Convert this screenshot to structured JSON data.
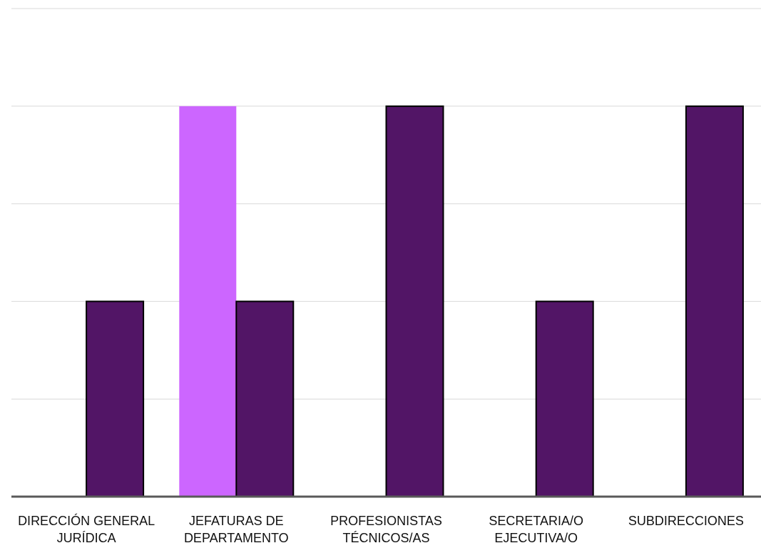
{
  "chart_data": {
    "type": "bar",
    "categories": [
      [
        "DIRECCIÓN GENERAL",
        "JURÍDICA"
      ],
      [
        "JEFATURAS DE",
        "DEPARTAMENTO"
      ],
      [
        "PROFESIONISTAS",
        "TÉCNICOS/AS"
      ],
      [
        "SECRETARIA/O",
        "EJECUTIVA/O"
      ],
      [
        "SUBDIRECCIONES"
      ]
    ],
    "series": [
      {
        "values": [
          0,
          4,
          0,
          0,
          0
        ],
        "color": "#cc66ff",
        "outline": "none"
      },
      {
        "values": [
          2,
          2,
          4,
          2,
          4
        ],
        "color": "#521566",
        "outline": "#000000"
      }
    ],
    "ylim": [
      0,
      5
    ],
    "grid": true,
    "gridlines": [
      1,
      2,
      3,
      4,
      5
    ],
    "title": "",
    "xlabel": "",
    "ylabel": "",
    "axis_color": "#595959",
    "grid_color": "#d9d9d9"
  }
}
